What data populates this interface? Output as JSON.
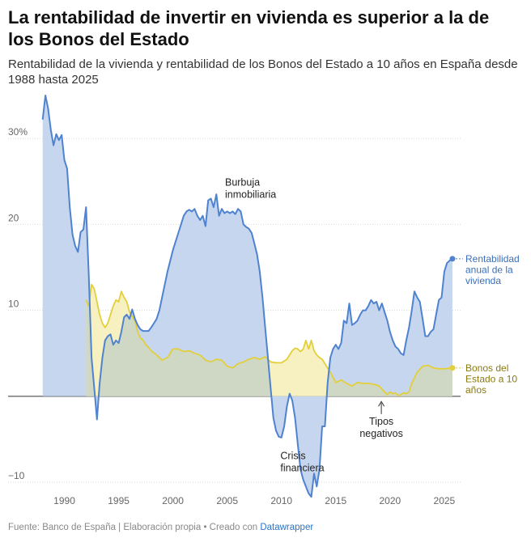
{
  "header": {
    "title": "La rentabilidad de invertir en vivienda es superior a la de los Bonos del Estado",
    "subtitle": "Rentabilidad de la vivienda y rentabilidad de los Bonos del Estado a 10 años en España desde 1988 hasta 2025"
  },
  "footer": {
    "source": "Fuente: Banco de España | Elaboración propia • Creado con ",
    "credit": "Datawrapper"
  },
  "colors": {
    "vivienda_line": "#4f82cf",
    "vivienda_fill": "#c6d6ef",
    "bonos_line": "#e2cf3a",
    "bonos_fill": "#f7f0c0",
    "overlap_fill": "#cfd8c4"
  },
  "chart_data": {
    "type": "area",
    "title": "",
    "xlabel": "",
    "ylabel": "",
    "xlim": [
      1987.5,
      2026.5
    ],
    "ylim": [
      -11.5,
      35
    ],
    "x_ticks": [
      1990,
      1995,
      2000,
      2005,
      2010,
      2015,
      2020,
      2025
    ],
    "x_tick_labels": [
      "1990",
      "1995",
      "2000",
      "2005",
      "2010",
      "2015",
      "2020",
      "2025"
    ],
    "y_ticks": [
      -10,
      0,
      10,
      20,
      30
    ],
    "y_tick_labels": [
      "−10",
      "",
      "10",
      "20",
      "30%"
    ],
    "grid": "horizontal",
    "series": [
      {
        "name": "Rentabilidad anual de la vivienda",
        "label": [
          "Rentabilidad",
          "anual de la",
          "vivienda"
        ],
        "points": [
          [
            1988.0,
            32.2
          ],
          [
            1988.25,
            35.0
          ],
          [
            1988.5,
            33.5
          ],
          [
            1988.75,
            31.0
          ],
          [
            1989.0,
            29.2
          ],
          [
            1989.25,
            30.5
          ],
          [
            1989.5,
            29.8
          ],
          [
            1989.75,
            30.4
          ],
          [
            1990.0,
            27.5
          ],
          [
            1990.25,
            26.5
          ],
          [
            1990.5,
            22.0
          ],
          [
            1990.75,
            18.8
          ],
          [
            1991.0,
            17.5
          ],
          [
            1991.25,
            16.8
          ],
          [
            1991.5,
            19.1
          ],
          [
            1991.75,
            19.4
          ],
          [
            1992.0,
            22.0
          ],
          [
            1992.25,
            14.0
          ],
          [
            1992.5,
            4.5
          ],
          [
            1992.75,
            1.0
          ],
          [
            1993.0,
            -2.7
          ],
          [
            1993.25,
            1.5
          ],
          [
            1993.5,
            4.5
          ],
          [
            1993.75,
            6.5
          ],
          [
            1994.0,
            7.0
          ],
          [
            1994.25,
            7.2
          ],
          [
            1994.5,
            6.0
          ],
          [
            1994.75,
            6.5
          ],
          [
            1995.0,
            6.2
          ],
          [
            1995.25,
            7.5
          ],
          [
            1995.5,
            9.2
          ],
          [
            1995.75,
            9.5
          ],
          [
            1996.0,
            9.0
          ],
          [
            1996.25,
            10.1
          ],
          [
            1996.5,
            9.0
          ],
          [
            1996.75,
            8.3
          ],
          [
            1997.0,
            7.8
          ],
          [
            1997.25,
            7.6
          ],
          [
            1997.5,
            7.6
          ],
          [
            1997.75,
            7.6
          ],
          [
            1998.0,
            8.0
          ],
          [
            1998.25,
            8.5
          ],
          [
            1998.5,
            9.0
          ],
          [
            1998.75,
            10.0
          ],
          [
            1999.0,
            11.5
          ],
          [
            1999.5,
            14.5
          ],
          [
            2000.0,
            17.0
          ],
          [
            2000.5,
            19.0
          ],
          [
            2001.0,
            21.0
          ],
          [
            2001.25,
            21.5
          ],
          [
            2001.5,
            21.7
          ],
          [
            2001.75,
            21.5
          ],
          [
            2002.0,
            21.8
          ],
          [
            2002.25,
            21.0
          ],
          [
            2002.5,
            20.5
          ],
          [
            2002.75,
            21.0
          ],
          [
            2003.0,
            19.8
          ],
          [
            2003.25,
            22.8
          ],
          [
            2003.5,
            23.0
          ],
          [
            2003.75,
            22.0
          ],
          [
            2004.0,
            23.5
          ],
          [
            2004.25,
            21.0
          ],
          [
            2004.5,
            21.8
          ],
          [
            2004.75,
            21.3
          ],
          [
            2005.0,
            21.5
          ],
          [
            2005.25,
            21.3
          ],
          [
            2005.5,
            21.5
          ],
          [
            2005.75,
            21.2
          ],
          [
            2006.0,
            21.8
          ],
          [
            2006.25,
            21.5
          ],
          [
            2006.5,
            20.0
          ],
          [
            2006.75,
            19.7
          ],
          [
            2007.0,
            19.5
          ],
          [
            2007.25,
            19.0
          ],
          [
            2007.5,
            17.8
          ],
          [
            2007.75,
            16.5
          ],
          [
            2008.0,
            14.5
          ],
          [
            2008.25,
            11.5
          ],
          [
            2008.5,
            8.0
          ],
          [
            2008.75,
            4.5
          ],
          [
            2009.0,
            1.0
          ],
          [
            2009.25,
            -2.5
          ],
          [
            2009.5,
            -4.0
          ],
          [
            2009.75,
            -4.7
          ],
          [
            2010.0,
            -4.8
          ],
          [
            2010.25,
            -3.5
          ],
          [
            2010.5,
            -1.2
          ],
          [
            2010.75,
            0.3
          ],
          [
            2011.0,
            -0.5
          ],
          [
            2011.25,
            -2.5
          ],
          [
            2011.5,
            -5.5
          ],
          [
            2011.75,
            -8.5
          ],
          [
            2012.0,
            -9.7
          ],
          [
            2012.25,
            -10.5
          ],
          [
            2012.5,
            -11.3
          ],
          [
            2012.75,
            -11.7
          ],
          [
            2013.0,
            -9.0
          ],
          [
            2013.25,
            -10.5
          ],
          [
            2013.5,
            -8.5
          ],
          [
            2013.75,
            -3.5
          ],
          [
            2014.0,
            -3.5
          ],
          [
            2014.25,
            1.5
          ],
          [
            2014.5,
            4.5
          ],
          [
            2014.75,
            5.5
          ],
          [
            2015.0,
            6.0
          ],
          [
            2015.25,
            5.5
          ],
          [
            2015.5,
            6.2
          ],
          [
            2015.75,
            8.8
          ],
          [
            2016.0,
            8.5
          ],
          [
            2016.25,
            10.8
          ],
          [
            2016.5,
            8.3
          ],
          [
            2016.75,
            8.5
          ],
          [
            2017.0,
            8.8
          ],
          [
            2017.25,
            9.5
          ],
          [
            2017.5,
            10.0
          ],
          [
            2017.75,
            10.0
          ],
          [
            2018.0,
            10.5
          ],
          [
            2018.25,
            11.2
          ],
          [
            2018.5,
            10.8
          ],
          [
            2018.75,
            11.0
          ],
          [
            2019.0,
            10.0
          ],
          [
            2019.25,
            10.8
          ],
          [
            2019.5,
            9.8
          ],
          [
            2019.75,
            8.8
          ],
          [
            2020.0,
            7.5
          ],
          [
            2020.25,
            6.5
          ],
          [
            2020.5,
            5.8
          ],
          [
            2020.75,
            5.5
          ],
          [
            2021.0,
            5.0
          ],
          [
            2021.25,
            4.8
          ],
          [
            2021.5,
            6.5
          ],
          [
            2021.75,
            8.0
          ],
          [
            2022.0,
            10.0
          ],
          [
            2022.25,
            12.2
          ],
          [
            2022.5,
            11.5
          ],
          [
            2022.75,
            11.0
          ],
          [
            2023.0,
            9.0
          ],
          [
            2023.25,
            7.0
          ],
          [
            2023.5,
            7.0
          ],
          [
            2023.75,
            7.5
          ],
          [
            2024.0,
            7.8
          ],
          [
            2024.25,
            9.5
          ],
          [
            2024.5,
            11.2
          ],
          [
            2024.75,
            11.5
          ],
          [
            2025.0,
            14.5
          ],
          [
            2025.25,
            15.5
          ],
          [
            2025.5,
            15.8
          ],
          [
            2025.75,
            16.0
          ]
        ]
      },
      {
        "name": "Bonos del Estado a 10 años",
        "label": [
          "Bonos del",
          "Estado a 10",
          "años"
        ],
        "points": [
          [
            1992.0,
            11.2
          ],
          [
            1992.25,
            10.5
          ],
          [
            1992.5,
            13.0
          ],
          [
            1992.75,
            12.5
          ],
          [
            1993.0,
            11.0
          ],
          [
            1993.25,
            9.5
          ],
          [
            1993.5,
            8.5
          ],
          [
            1993.75,
            8.0
          ],
          [
            1994.0,
            8.5
          ],
          [
            1994.25,
            9.5
          ],
          [
            1994.5,
            10.5
          ],
          [
            1994.75,
            11.2
          ],
          [
            1995.0,
            11.0
          ],
          [
            1995.25,
            12.2
          ],
          [
            1995.5,
            11.5
          ],
          [
            1995.75,
            11.0
          ],
          [
            1996.0,
            9.8
          ],
          [
            1996.25,
            9.3
          ],
          [
            1996.5,
            8.8
          ],
          [
            1996.75,
            7.5
          ],
          [
            1997.0,
            6.8
          ],
          [
            1997.25,
            6.5
          ],
          [
            1997.5,
            6.0
          ],
          [
            1997.75,
            5.7
          ],
          [
            1998.0,
            5.3
          ],
          [
            1998.5,
            4.8
          ],
          [
            1999.0,
            4.2
          ],
          [
            1999.5,
            4.5
          ],
          [
            2000.0,
            5.5
          ],
          [
            2000.5,
            5.5
          ],
          [
            2001.0,
            5.2
          ],
          [
            2001.5,
            5.3
          ],
          [
            2002.0,
            5.0
          ],
          [
            2002.5,
            4.8
          ],
          [
            2003.0,
            4.2
          ],
          [
            2003.5,
            4.0
          ],
          [
            2004.0,
            4.3
          ],
          [
            2004.5,
            4.2
          ],
          [
            2005.0,
            3.5
          ],
          [
            2005.5,
            3.3
          ],
          [
            2006.0,
            3.8
          ],
          [
            2006.5,
            4.0
          ],
          [
            2007.0,
            4.3
          ],
          [
            2007.5,
            4.5
          ],
          [
            2008.0,
            4.3
          ],
          [
            2008.5,
            4.6
          ],
          [
            2009.0,
            4.0
          ],
          [
            2009.5,
            3.9
          ],
          [
            2010.0,
            3.9
          ],
          [
            2010.5,
            4.3
          ],
          [
            2011.0,
            5.3
          ],
          [
            2011.25,
            5.6
          ],
          [
            2011.5,
            5.5
          ],
          [
            2011.75,
            5.2
          ],
          [
            2012.0,
            5.5
          ],
          [
            2012.25,
            6.5
          ],
          [
            2012.5,
            5.5
          ],
          [
            2012.75,
            6.5
          ],
          [
            2013.0,
            5.3
          ],
          [
            2013.25,
            4.8
          ],
          [
            2013.5,
            4.5
          ],
          [
            2013.75,
            4.3
          ],
          [
            2014.0,
            3.8
          ],
          [
            2014.5,
            2.8
          ],
          [
            2015.0,
            1.6
          ],
          [
            2015.5,
            1.9
          ],
          [
            2016.0,
            1.5
          ],
          [
            2016.5,
            1.2
          ],
          [
            2017.0,
            1.6
          ],
          [
            2017.5,
            1.5
          ],
          [
            2018.0,
            1.5
          ],
          [
            2018.5,
            1.4
          ],
          [
            2019.0,
            1.2
          ],
          [
            2019.5,
            0.5
          ],
          [
            2019.75,
            0.2
          ],
          [
            2020.0,
            0.5
          ],
          [
            2020.25,
            0.3
          ],
          [
            2020.5,
            0.4
          ],
          [
            2020.75,
            0.1
          ],
          [
            2021.0,
            0.2
          ],
          [
            2021.25,
            0.4
          ],
          [
            2021.5,
            0.3
          ],
          [
            2021.75,
            0.5
          ],
          [
            2022.0,
            1.5
          ],
          [
            2022.5,
            2.8
          ],
          [
            2023.0,
            3.5
          ],
          [
            2023.5,
            3.6
          ],
          [
            2024.0,
            3.3
          ],
          [
            2024.5,
            3.2
          ],
          [
            2025.0,
            3.2
          ],
          [
            2025.75,
            3.3
          ]
        ]
      }
    ],
    "annotations": [
      {
        "lines": [
          "Burbuja",
          "inmobiliaria"
        ],
        "x": 2004.8,
        "y": 24.5
      },
      {
        "lines": [
          "Crisis",
          "financiera"
        ],
        "x": 2009.9,
        "y": -7.3
      },
      {
        "lines": [
          "Tipos",
          "negativos"
        ],
        "x": 2019.2,
        "y": -3.3,
        "arrow": true
      }
    ]
  }
}
